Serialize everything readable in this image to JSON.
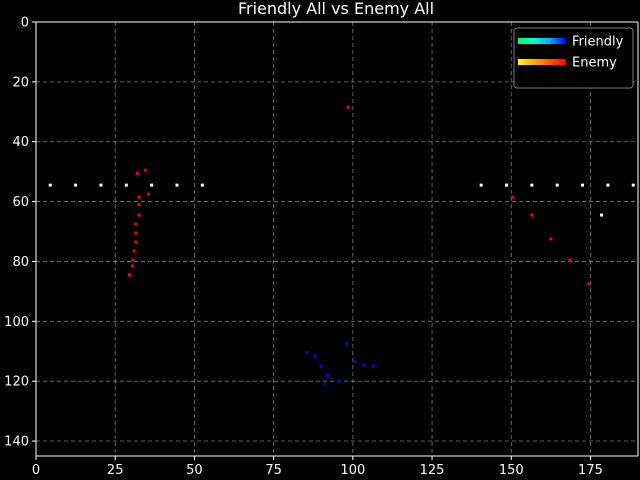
{
  "chart_data": {
    "type": "scatter",
    "title": "Friendly All vs Enemy All",
    "xlabel": "",
    "ylabel": "",
    "xlim": [
      0,
      190
    ],
    "ylim": [
      145,
      0
    ],
    "y_inverted": true,
    "grid": true,
    "grid_style": "dashed",
    "legend_position": "top-right",
    "x_ticks": [
      "0",
      "25",
      "50",
      "75",
      "100",
      "125",
      "150",
      "175"
    ],
    "y_ticks": [
      "0",
      "20",
      "40",
      "60",
      "80",
      "100",
      "120",
      "140"
    ],
    "series": [
      {
        "name": "Friendly",
        "colormap": [
          "#00ff66",
          "#00ffcc",
          "#00aaff",
          "#0000ff"
        ],
        "marker_color": "#0000ff",
        "points": [
          [
            85.5,
            110.5
          ],
          [
            88,
            111.5
          ],
          [
            90,
            115
          ],
          [
            91,
            121
          ],
          [
            92,
            118
          ],
          [
            95.5,
            120
          ],
          [
            98,
            107.5
          ],
          [
            100.5,
            113.5
          ],
          [
            103.5,
            114.5
          ],
          [
            106.5,
            115
          ]
        ]
      },
      {
        "name": "Enemy",
        "colormap": [
          "#ffff00",
          "#ffaa00",
          "#ff5500",
          "#ff0000"
        ],
        "marker_color": "#ff0000",
        "points": [
          [
            98.5,
            28.5
          ],
          [
            32,
            50.5
          ],
          [
            34.5,
            49.5
          ],
          [
            35.5,
            57.5
          ],
          [
            32.5,
            58.5
          ],
          [
            32.5,
            61
          ],
          [
            32.5,
            64.5
          ],
          [
            31.5,
            67.5
          ],
          [
            31.5,
            70.5
          ],
          [
            31.5,
            73.5
          ],
          [
            31,
            76.5
          ],
          [
            30.5,
            79.5
          ],
          [
            30.5,
            81.5
          ],
          [
            29.5,
            84.5
          ],
          [
            150.5,
            58.5
          ],
          [
            156.5,
            64.5
          ],
          [
            162.5,
            72.5
          ],
          [
            168.5,
            79.5
          ],
          [
            174.5,
            87.5
          ]
        ]
      },
      {
        "marker_color": "#ffffff",
        "points": [
          [
            4.5,
            54.5
          ],
          [
            12.5,
            54.5
          ],
          [
            20.5,
            54.5
          ],
          [
            28.5,
            54.5
          ],
          [
            36.5,
            54.5
          ],
          [
            44.5,
            54.5
          ],
          [
            52.5,
            54.5
          ],
          [
            140.5,
            54.5
          ],
          [
            148.5,
            54.5
          ],
          [
            156.5,
            54.5
          ],
          [
            164.5,
            54.5
          ],
          [
            172.5,
            54.5
          ],
          [
            180.5,
            54.5
          ],
          [
            188.5,
            54.5
          ],
          [
            178.5,
            64.5
          ]
        ]
      }
    ]
  }
}
